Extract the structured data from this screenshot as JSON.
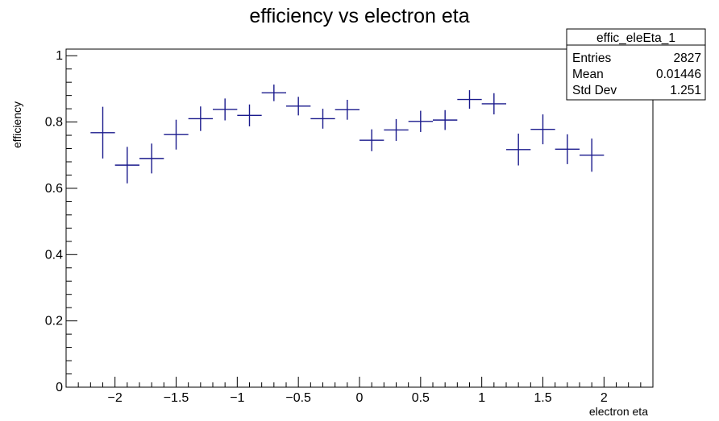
{
  "chart_data": {
    "type": "scatter",
    "title": "efficiency vs electron eta",
    "xlabel": "electron eta",
    "ylabel": "efficiency",
    "xlim": [
      -2.4,
      2.4
    ],
    "ylim": [
      0,
      1.02
    ],
    "grid": false,
    "x_ticks": [
      {
        "value": -2,
        "label": "−2"
      },
      {
        "value": -1.5,
        "label": "−1.5"
      },
      {
        "value": -1,
        "label": "−1"
      },
      {
        "value": -0.5,
        "label": "−0.5"
      },
      {
        "value": 0,
        "label": "0"
      },
      {
        "value": 0.5,
        "label": "0.5"
      },
      {
        "value": 1,
        "label": "1"
      },
      {
        "value": 1.5,
        "label": "1.5"
      },
      {
        "value": 2,
        "label": "2"
      }
    ],
    "y_ticks": [
      {
        "value": 0,
        "label": "0"
      },
      {
        "value": 0.2,
        "label": "0.2"
      },
      {
        "value": 0.4,
        "label": "0.4"
      },
      {
        "value": 0.6,
        "label": "0.6"
      },
      {
        "value": 0.8,
        "label": "0.8"
      },
      {
        "value": 1,
        "label": "1"
      }
    ],
    "marker_color": "#1a1a8c",
    "bin_half_width": 0.1,
    "points": [
      {
        "x": -2.1,
        "y": 0.768,
        "err": 0.078
      },
      {
        "x": -1.9,
        "y": 0.67,
        "err": 0.055
      },
      {
        "x": -1.7,
        "y": 0.69,
        "err": 0.045
      },
      {
        "x": -1.5,
        "y": 0.762,
        "err": 0.045
      },
      {
        "x": -1.3,
        "y": 0.81,
        "err": 0.037
      },
      {
        "x": -1.1,
        "y": 0.838,
        "err": 0.033
      },
      {
        "x": -0.9,
        "y": 0.82,
        "err": 0.033
      },
      {
        "x": -0.7,
        "y": 0.888,
        "err": 0.025
      },
      {
        "x": -0.5,
        "y": 0.848,
        "err": 0.028
      },
      {
        "x": -0.3,
        "y": 0.81,
        "err": 0.03
      },
      {
        "x": -0.1,
        "y": 0.837,
        "err": 0.03
      },
      {
        "x": 0.1,
        "y": 0.745,
        "err": 0.033
      },
      {
        "x": 0.3,
        "y": 0.776,
        "err": 0.033
      },
      {
        "x": 0.5,
        "y": 0.802,
        "err": 0.032
      },
      {
        "x": 0.7,
        "y": 0.806,
        "err": 0.03
      },
      {
        "x": 0.9,
        "y": 0.868,
        "err": 0.028
      },
      {
        "x": 1.1,
        "y": 0.855,
        "err": 0.032
      },
      {
        "x": 1.3,
        "y": 0.717,
        "err": 0.048
      },
      {
        "x": 1.5,
        "y": 0.778,
        "err": 0.045
      },
      {
        "x": 1.7,
        "y": 0.718,
        "err": 0.045
      },
      {
        "x": 1.9,
        "y": 0.7,
        "err": 0.05
      }
    ],
    "stats_box": {
      "name": "effic_eleEta_1",
      "rows": [
        {
          "label": "Entries",
          "value": "2827"
        },
        {
          "label": "Mean",
          "value": "0.01446"
        },
        {
          "label": "Std Dev",
          "value": "1.251"
        }
      ]
    }
  }
}
